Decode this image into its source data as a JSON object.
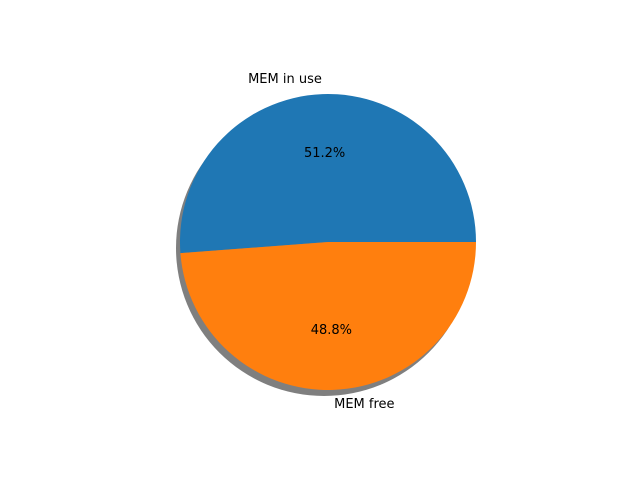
{
  "chart_data": {
    "type": "pie",
    "title": "",
    "slices": [
      {
        "label": "MEM in use",
        "value": 51.2,
        "pct_label": "51.2%",
        "color": "#1f77b4"
      },
      {
        "label": "MEM free",
        "value": 48.8,
        "pct_label": "48.8%",
        "color": "#ff7f0e"
      }
    ],
    "start_angle_deg": 0,
    "direction": "counterclockwise",
    "shadow": true,
    "shadow_color": "#7f7f7f",
    "legend": "none"
  }
}
